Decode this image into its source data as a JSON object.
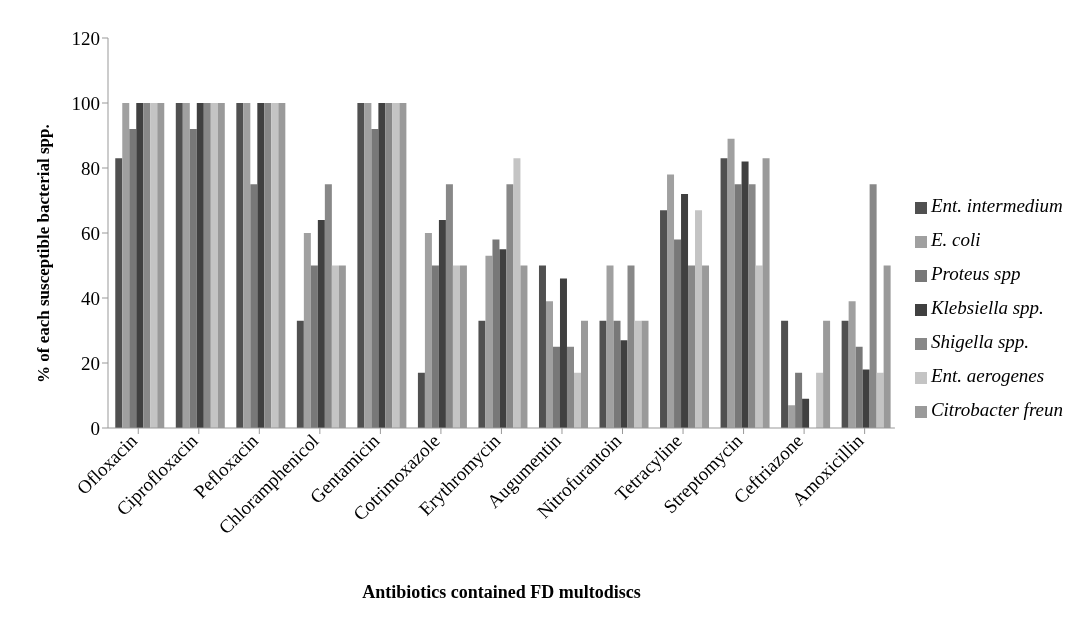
{
  "chart_data": {
    "type": "bar",
    "xlabel": "Antibiotics contained FD multodiscs",
    "ylabel": "% of each susceptible bacterial spp.",
    "categories": [
      "Ofloxacin",
      "Ciprofloxacin",
      "Pefloxacin",
      "Chloramphenicol",
      "Gentamicin",
      "Cotrimoxazole",
      "Erythromycin",
      "Augumentin",
      "Nitrofurantoin",
      "Tetracyline",
      "Streptomycin",
      "Ceftriazone",
      "Amoxicillin"
    ],
    "series": [
      {
        "name": "Ent. intermedium",
        "color": "#505050",
        "values": [
          83,
          100,
          100,
          33,
          100,
          17,
          33,
          50,
          33,
          67,
          83,
          33,
          33
        ]
      },
      {
        "name": "E. coli",
        "color": "#a0a0a0",
        "values": [
          100,
          100,
          100,
          60,
          100,
          60,
          53,
          39,
          50,
          78,
          89,
          7,
          39
        ]
      },
      {
        "name": "Proteus spp",
        "color": "#787878",
        "values": [
          92,
          92,
          75,
          50,
          92,
          50,
          58,
          25,
          33,
          58,
          75,
          17,
          25
        ]
      },
      {
        "name": "Klebsiella spp.",
        "color": "#404040",
        "values": [
          100,
          100,
          100,
          64,
          100,
          64,
          55,
          46,
          27,
          72,
          82,
          9,
          18
        ]
      },
      {
        "name": "Shigella spp.",
        "color": "#888888",
        "values": [
          100,
          100,
          100,
          75,
          100,
          75,
          75,
          25,
          50,
          50,
          75,
          0,
          75
        ]
      },
      {
        "name": "Ent. aerogenes",
        "color": "#c4c4c4",
        "values": [
          100,
          100,
          100,
          50,
          100,
          50,
          83,
          17,
          33,
          67,
          50,
          17,
          17
        ]
      },
      {
        "name": "Citrobacter freun",
        "color": "#9a9a9a",
        "values": [
          100,
          100,
          100,
          50,
          100,
          50,
          50,
          33,
          33,
          50,
          83,
          33,
          50
        ]
      }
    ],
    "ylim": [
      0,
      120
    ],
    "yticks": [
      0,
      20,
      40,
      60,
      80,
      100,
      120
    ],
    "grid": false,
    "legend": "right"
  }
}
